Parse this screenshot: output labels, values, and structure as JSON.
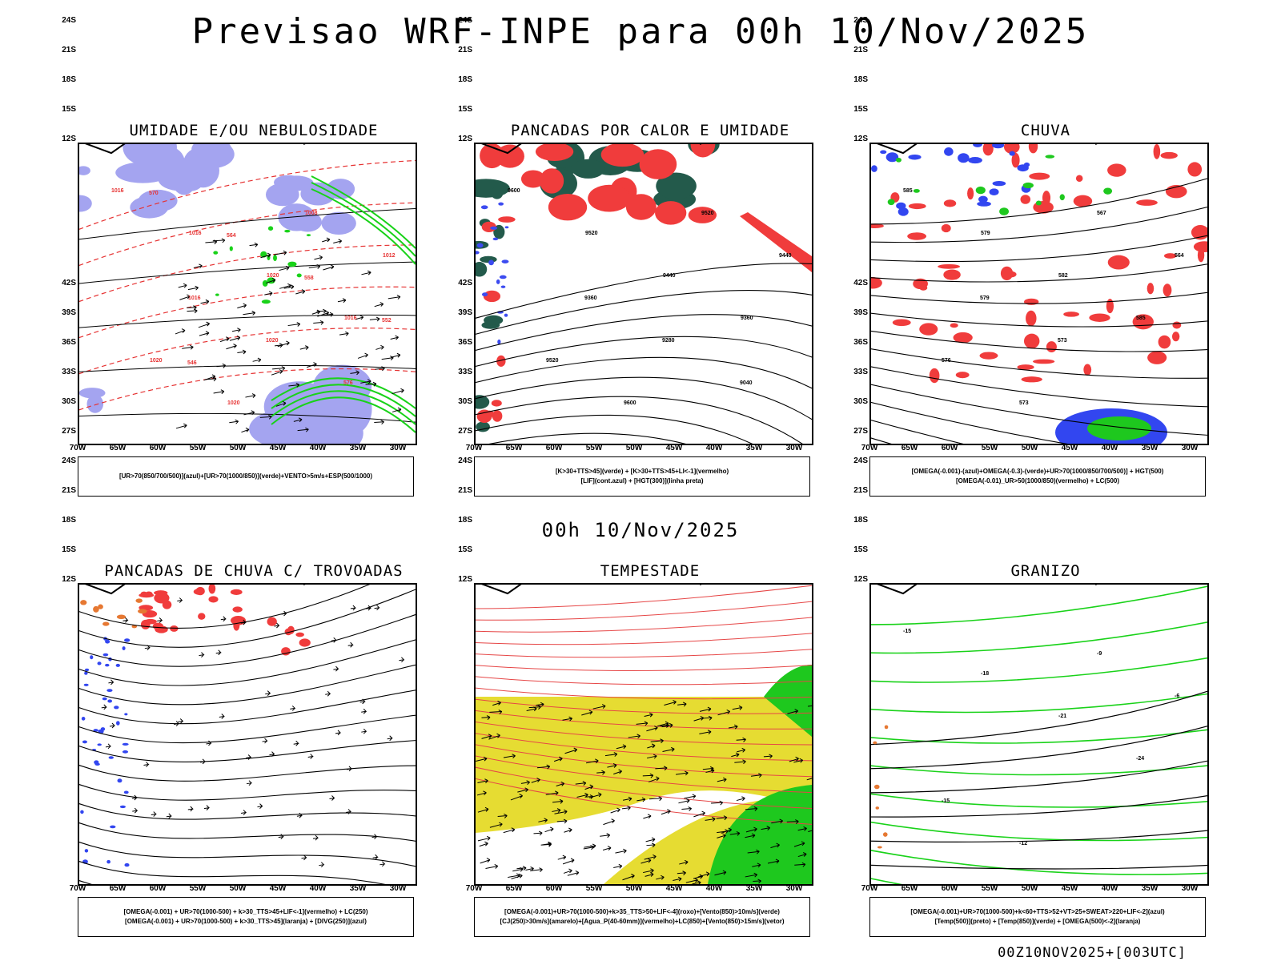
{
  "header": {
    "title": "Previsao WRF-INPE  para 00h 10/Nov/2025",
    "mid_title": "00h 10/Nov/2025",
    "footer": "00Z10NOV2025+[003UTC]"
  },
  "axes": {
    "lat_labels": [
      "12S",
      "15S",
      "18S",
      "21S",
      "24S",
      "27S",
      "30S",
      "33S",
      "36S",
      "39S",
      "42S"
    ],
    "lon_labels": [
      "70W",
      "65W",
      "60W",
      "55W",
      "50W",
      "45W",
      "40W",
      "35W",
      "30W"
    ]
  },
  "panels": [
    {
      "id": "umidade",
      "title": "UMIDADE E/OU NEBULOSIDADE",
      "legend": [
        "[UR>70(850/700/500)](azul)+[UR>70(1000/850)](verde)+VENTO>5m/s+ESP(500/1000)"
      ],
      "contour_labels": [
        "1016",
        "1016",
        "1020",
        "1016",
        "1020",
        "1020",
        "1008",
        "1012",
        "1016",
        "1020",
        "576",
        "570",
        "564",
        "558",
        "552",
        "546"
      ]
    },
    {
      "id": "pancadas-calor",
      "title": "PANCADAS POR CALOR E UMIDADE",
      "legend": [
        "[K>30+TTS>45](verde) + [K>30+TTS>45+LI<-1](vermelho)",
        "[LIF](cont.azul) + [HGT(300)](linha preta)"
      ],
      "contour_labels": [
        "9600",
        "9520",
        "9440",
        "9360",
        "9520",
        "9600",
        "9520",
        "9440",
        "9360",
        "9280",
        "9040"
      ]
    },
    {
      "id": "chuva",
      "title": "CHUVA",
      "legend": [
        "[OMEGA(-0.001)-(azul)+OMEGA(-0.3)-(verde)+UR>70(1000/850/700/500)] + HGT(500)",
        "[OMEGA(-0.01)_UR>50(1000/850)(vermelho) + LC(500)"
      ],
      "contour_labels": [
        "585",
        "579",
        "582",
        "585",
        "576",
        "573",
        "567",
        "564",
        "579",
        "573"
      ]
    },
    {
      "id": "trovoadas",
      "title": "PANCADAS DE CHUVA C/ TROVOADAS",
      "legend": [
        "[OMEGA(-0.001) + UR>70(1000-500) + k>30_TTS>45+LIF<-1](vermelho) + LC(250)",
        "[OMEGA(-0.001) + UR>70(1000-500) + k>30_TTS>45](laranja) + [DIVG(250)](azul)"
      ],
      "contour_labels": []
    },
    {
      "id": "tempestade",
      "title": "TEMPESTADE",
      "legend": [
        "[OMEGA(-0.001)+UR>70(1000-500)+k>35_TTS>50+LIF<-4](roxo)+[Vento(850)>10m/s](verde)",
        "[CJ(250)>30m/s](amarelo)+[Agua_P(40-60mm)](vermelho)+LC(850)+[Vento(850)>15m/s](vetor)"
      ],
      "contour_labels": []
    },
    {
      "id": "granizo",
      "title": "GRANIZO",
      "legend": [
        "[OMEGA(-0.001)+UR>70(1000-500)+k<60+TTS>52+VT>25+SWEAT>220+LIF<-2](azul)",
        "[Temp(500)](preto) + [Temp(850)](verde) + [OMEGA(500)<-2](laranja)"
      ],
      "contour_labels": [
        "-15",
        "-18",
        "-21",
        "-24",
        "-15",
        "-12",
        "-9",
        "-6"
      ]
    }
  ],
  "colors": {
    "blue_shade": "#a4a4f0",
    "green_line": "#19d219",
    "red_fill": "#f03c3c",
    "dark_green": "#235a4b",
    "yellow": "#e6dc32",
    "green_fill": "#1ec81e",
    "blue_dots": "#3246f0",
    "orange": "#e67832",
    "contour": "#000000"
  }
}
